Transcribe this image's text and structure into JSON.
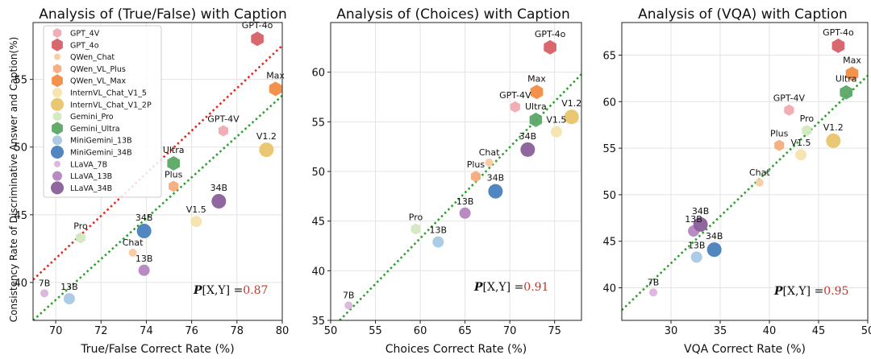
{
  "chart_data": [
    {
      "type": "scatter",
      "title": "Analysis of (True/False) with Caption",
      "xlabel": "True/False Correct Rate (%)",
      "ylabel": "Consistency Rate of Discriminative Answer and Caption(%)",
      "xlim": [
        69,
        80
      ],
      "ylim": [
        37.2,
        59.2
      ],
      "xticks": [
        70,
        72,
        74,
        76,
        78,
        80
      ],
      "yticks": [
        40,
        45,
        50,
        55
      ],
      "grid": true,
      "legend": "upper-left",
      "correlation": {
        "text": "P[X,Y]",
        "equals": "=",
        "value": "0.87"
      },
      "fit_lines": [
        {
          "color": "#2ca02c",
          "points": [
            [
              69,
              37.2
            ],
            [
              80,
              53.8
            ]
          ]
        },
        {
          "color": "#e8261b",
          "points": [
            [
              69,
              40.2
            ],
            [
              80,
              57.5
            ]
          ]
        }
      ],
      "points": [
        {
          "series": "LLaVA_7B",
          "x": 69.5,
          "y": 39.2,
          "label": "7B"
        },
        {
          "series": "MiniGemini_13B",
          "x": 70.6,
          "y": 38.8,
          "label": "13B"
        },
        {
          "series": "Gemini_Pro",
          "x": 71.1,
          "y": 43.3,
          "label": "Pro"
        },
        {
          "series": "QWen_Chat",
          "x": 73.4,
          "y": 42.2,
          "label": "Chat"
        },
        {
          "series": "LLaVA_13B",
          "x": 73.9,
          "y": 40.9,
          "label": "13B"
        },
        {
          "series": "MiniGemini_34B",
          "x": 73.9,
          "y": 43.8,
          "label": "34B"
        },
        {
          "series": "QWen_VL_Plus",
          "x": 75.2,
          "y": 47.1,
          "label": "Plus"
        },
        {
          "series": "Gemini_Ultra",
          "x": 75.2,
          "y": 48.8,
          "label": "Ultra"
        },
        {
          "series": "InternVL_Chat_V1_5",
          "x": 76.2,
          "y": 44.5,
          "label": "V1.5"
        },
        {
          "series": "LLaVA_34B",
          "x": 77.2,
          "y": 46.0,
          "label": "34B"
        },
        {
          "series": "GPT_4V",
          "x": 77.4,
          "y": 51.2,
          "label": "GPT-4V"
        },
        {
          "series": "GPT_4o",
          "x": 78.9,
          "y": 58.0,
          "label": "GPT-4o"
        },
        {
          "series": "InternVL_Chat_V1_2P",
          "x": 79.3,
          "y": 49.8,
          "label": "V1.2"
        },
        {
          "series": "QWen_VL_Max",
          "x": 79.7,
          "y": 54.3,
          "label": "Max"
        }
      ]
    },
    {
      "type": "scatter",
      "title": "Analysis of (Choices) with Caption",
      "xlabel": "Choices Correct Rate (%)",
      "ylabel": "",
      "xlim": [
        50,
        78
      ],
      "ylim": [
        35,
        65
      ],
      "xticks": [
        50,
        55,
        60,
        65,
        70,
        75
      ],
      "yticks": [
        35,
        40,
        45,
        50,
        55,
        60
      ],
      "grid": true,
      "correlation": {
        "text": "P[X,Y]",
        "equals": "=",
        "value": "0.91"
      },
      "fit_lines": [
        {
          "color": "#2ca02c",
          "points": [
            [
              51,
              35
            ],
            [
              78,
              59.8
            ]
          ]
        }
      ],
      "points": [
        {
          "series": "LLaVA_7B",
          "x": 52.0,
          "y": 36.5,
          "label": "7B"
        },
        {
          "series": "Gemini_Pro",
          "x": 59.5,
          "y": 44.2,
          "label": "Pro"
        },
        {
          "series": "MiniGemini_13B",
          "x": 62.0,
          "y": 42.9,
          "label": "13B"
        },
        {
          "series": "LLaVA_13B",
          "x": 65.0,
          "y": 45.8,
          "label": "13B"
        },
        {
          "series": "QWen_VL_Plus",
          "x": 66.2,
          "y": 49.5,
          "label": "Plus"
        },
        {
          "series": "QWen_Chat",
          "x": 67.7,
          "y": 50.9,
          "label": "Chat"
        },
        {
          "series": "MiniGemini_34B",
          "x": 68.4,
          "y": 48.0,
          "label": "34B"
        },
        {
          "series": "GPT_4V",
          "x": 70.6,
          "y": 56.5,
          "label": "GPT-4V"
        },
        {
          "series": "LLaVA_34B",
          "x": 72.0,
          "y": 52.2,
          "label": "34B"
        },
        {
          "series": "Gemini_Ultra",
          "x": 72.9,
          "y": 55.2,
          "label": "Ultra"
        },
        {
          "series": "QWen_VL_Max",
          "x": 73.0,
          "y": 58.0,
          "label": "Max"
        },
        {
          "series": "GPT_4o",
          "x": 74.5,
          "y": 62.5,
          "label": "GPT-4o"
        },
        {
          "series": "InternVL_Chat_V1_5",
          "x": 75.2,
          "y": 54.0,
          "label": "V1.5"
        },
        {
          "series": "InternVL_Chat_V1_2P",
          "x": 76.9,
          "y": 55.5,
          "label": "V1.2"
        }
      ]
    },
    {
      "type": "scatter",
      "title": "Analysis of (VQA) with Caption",
      "xlabel": "VQA Correct Rate (%)",
      "ylabel": "",
      "xlim": [
        25,
        50
      ],
      "ylim": [
        36.5,
        68.5
      ],
      "xticks": [
        30,
        35,
        40,
        45,
        50
      ],
      "yticks": [
        40,
        45,
        50,
        55,
        60,
        65
      ],
      "grid": true,
      "correlation": {
        "text": "P[X,Y]",
        "equals": "=",
        "value": "0.95"
      },
      "fit_lines": [
        {
          "color": "#2ca02c",
          "points": [
            [
              25,
              37.6
            ],
            [
              50,
              62.8
            ]
          ]
        }
      ],
      "points": [
        {
          "series": "LLaVA_7B",
          "x": 28.2,
          "y": 39.5,
          "label": "7B"
        },
        {
          "series": "LLaVA_13B",
          "x": 32.3,
          "y": 46.1,
          "label": "13B"
        },
        {
          "series": "MiniGemini_13B",
          "x": 32.6,
          "y": 43.3,
          "label": "13B"
        },
        {
          "series": "LLaVA_34B",
          "x": 33.0,
          "y": 46.8,
          "label": "34B"
        },
        {
          "series": "MiniGemini_34B",
          "x": 34.4,
          "y": 44.1,
          "label": "34B"
        },
        {
          "series": "QWen_Chat",
          "x": 39.0,
          "y": 51.3,
          "label": "Chat"
        },
        {
          "series": "QWen_VL_Plus",
          "x": 41.0,
          "y": 55.3,
          "label": "Plus"
        },
        {
          "series": "GPT_4V",
          "x": 42.0,
          "y": 59.1,
          "label": "GPT-4V"
        },
        {
          "series": "InternVL_Chat_V1_5",
          "x": 43.2,
          "y": 54.3,
          "label": "V1.5"
        },
        {
          "series": "Gemini_Pro",
          "x": 43.8,
          "y": 56.9,
          "label": "Pro"
        },
        {
          "series": "InternVL_Chat_V1_2P",
          "x": 46.5,
          "y": 55.8,
          "label": "V1.2"
        },
        {
          "series": "GPT_4o",
          "x": 47.0,
          "y": 66.0,
          "label": "GPT-4o"
        },
        {
          "series": "Gemini_Ultra",
          "x": 47.8,
          "y": 61.0,
          "label": "Ultra"
        },
        {
          "series": "QWen_VL_Max",
          "x": 48.4,
          "y": 63.0,
          "label": "Max"
        }
      ]
    }
  ],
  "legend": [
    {
      "key": "GPT_4V",
      "label": "GPT_4V",
      "color": "#f0aab0",
      "marker": "hexagon",
      "size": "small"
    },
    {
      "key": "GPT_4o",
      "label": "GPT_4o",
      "color": "#d75f66",
      "marker": "hexagon",
      "size": "large"
    },
    {
      "key": "QWen_Chat",
      "label": "QWen_Chat",
      "color": "#f9cba2",
      "marker": "circle",
      "size": "tiny"
    },
    {
      "key": "QWen_VL_Plus",
      "label": "QWen_VL_Plus",
      "color": "#f4ad7c",
      "marker": "hexagon",
      "size": "small"
    },
    {
      "key": "QWen_VL_Max",
      "label": "QWen_VL_Max",
      "color": "#f28c43",
      "marker": "hexagon",
      "size": "large"
    },
    {
      "key": "InternVL_Chat_V1_5",
      "label": "InternVL_Chat_V1_5",
      "color": "#f6e3ad",
      "marker": "circle",
      "size": "small"
    },
    {
      "key": "InternVL_Chat_V1_2P",
      "label": "InternVL_Chat_V1_2P",
      "color": "#e9c46c",
      "marker": "circle",
      "size": "large"
    },
    {
      "key": "Gemini_Pro",
      "label": "Gemini_Pro",
      "color": "#d3e8bf",
      "marker": "hexagon",
      "size": "small"
    },
    {
      "key": "Gemini_Ultra",
      "label": "Gemini_Ultra",
      "color": "#5aa865",
      "marker": "hexagon",
      "size": "large"
    },
    {
      "key": "MiniGemini_13B",
      "label": "MiniGemini_13B",
      "color": "#a8c9e4",
      "marker": "circle",
      "size": "small"
    },
    {
      "key": "MiniGemini_34B",
      "label": "MiniGemini_34B",
      "color": "#4880bd",
      "marker": "circle",
      "size": "large"
    },
    {
      "key": "LLaVA_7B",
      "label": "LLaVA_7B",
      "color": "#dcb3dd",
      "marker": "circle",
      "size": "tiny"
    },
    {
      "key": "LLaVA_13B",
      "label": "LLaVA_13B",
      "color": "#b486c0",
      "marker": "circle",
      "size": "small"
    },
    {
      "key": "LLaVA_34B",
      "label": "LLaVA_34B",
      "color": "#8a5e9a",
      "marker": "circle",
      "size": "large"
    }
  ],
  "colors": {
    "grid": "#e3e3e3",
    "axis": "#222222",
    "corr_value": "#c0392b"
  }
}
